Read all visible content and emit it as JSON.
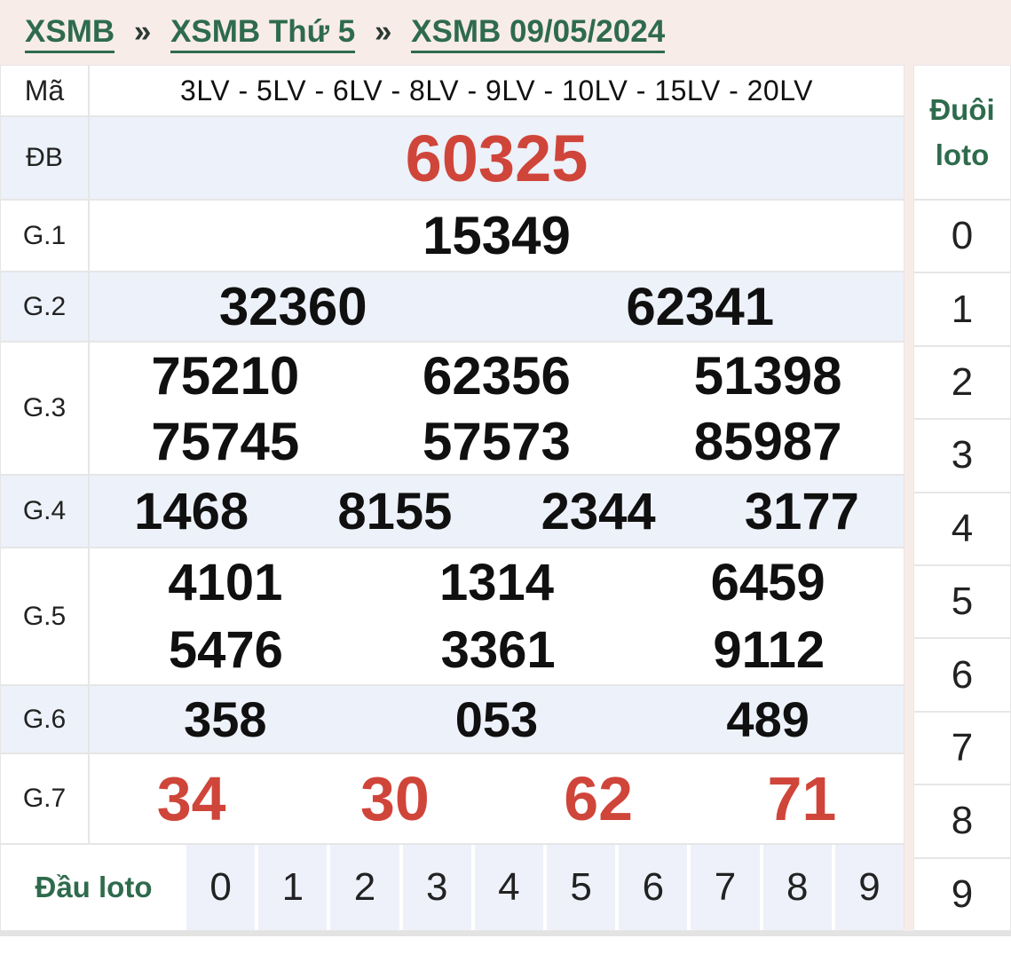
{
  "colors": {
    "page_bg": "#f8ece9",
    "green": "#2e6b4c",
    "red": "#d0453a",
    "alt_row_bg": "#edf1f9",
    "digit_cell_bg": "#eef0fa",
    "border": "#e6e6e6"
  },
  "breadcrumb": {
    "separator": "»",
    "items": [
      {
        "label": "XSMB"
      },
      {
        "label": "XSMB Thứ 5"
      },
      {
        "label": "XSMB 09/05/2024"
      }
    ]
  },
  "table": {
    "code_header": "Mã",
    "lv_header": "3LV - 5LV - 6LV - 8LV - 9LV - 10LV - 15LV - 20LV",
    "rows": [
      {
        "label": "ĐB",
        "lines": [
          [
            "60325"
          ]
        ]
      },
      {
        "label": "G.1",
        "lines": [
          [
            "15349"
          ]
        ]
      },
      {
        "label": "G.2",
        "lines": [
          [
            "32360",
            "62341"
          ]
        ]
      },
      {
        "label": "G.3",
        "lines": [
          [
            "75210",
            "62356",
            "51398"
          ],
          [
            "75745",
            "57573",
            "85987"
          ]
        ]
      },
      {
        "label": "G.4",
        "lines": [
          [
            "1468",
            "8155",
            "2344",
            "3177"
          ]
        ]
      },
      {
        "label": "G.5",
        "lines": [
          [
            "4101",
            "1314",
            "6459"
          ],
          [
            "5476",
            "3361",
            "9112"
          ]
        ]
      },
      {
        "label": "G.6",
        "lines": [
          [
            "358",
            "053",
            "489"
          ]
        ]
      },
      {
        "label": "G.7",
        "lines": [
          [
            "34",
            "30",
            "62",
            "71"
          ]
        ]
      }
    ],
    "dau_loto": {
      "label": "Đầu loto",
      "digits": [
        "0",
        "1",
        "2",
        "3",
        "4",
        "5",
        "6",
        "7",
        "8",
        "9"
      ]
    }
  },
  "tail_loto": {
    "header_line1": "Đuôi",
    "header_line2": "loto",
    "digits": [
      "0",
      "1",
      "2",
      "3",
      "4",
      "5",
      "6",
      "7",
      "8",
      "9"
    ]
  }
}
